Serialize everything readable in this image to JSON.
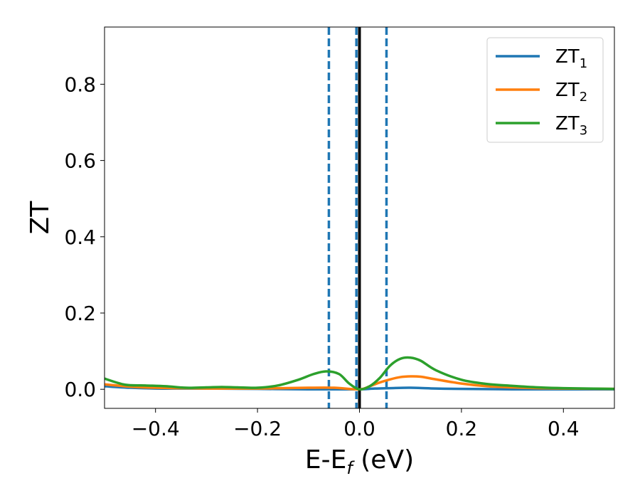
{
  "chart_data": {
    "type": "line",
    "title": "",
    "xlabel": {
      "main": "E-E",
      "sub": "f",
      "unit": " (eV)"
    },
    "ylabel": "ZT",
    "xlim": [
      -0.5,
      0.5
    ],
    "ylim": [
      -0.05,
      0.95
    ],
    "xticks": [
      -0.4,
      -0.2,
      0.0,
      0.2,
      0.4
    ],
    "xtick_labels": [
      "−0.4",
      "−0.2",
      "0.0",
      "0.2",
      "0.4"
    ],
    "yticks": [
      0.0,
      0.2,
      0.4,
      0.6,
      0.8
    ],
    "ytick_labels": [
      "0.0",
      "0.2",
      "0.4",
      "0.6",
      "0.8"
    ],
    "grid": false,
    "legend_position": "top-right",
    "vertical_lines": [
      {
        "x": 0.0,
        "style": "solid",
        "color": "#000000"
      },
      {
        "x": -0.06,
        "style": "dashed",
        "color": "#1f77b4"
      },
      {
        "x": -0.006,
        "style": "dashed",
        "color": "#1f77b4"
      },
      {
        "x": 0.053,
        "style": "dashed",
        "color": "#1f77b4"
      }
    ],
    "series": [
      {
        "name": "ZT",
        "sub": "1",
        "color": "#1f77b4",
        "x": [
          -0.5,
          -0.45,
          -0.4,
          -0.35,
          -0.3,
          -0.2,
          -0.1,
          -0.05,
          0.0,
          0.03,
          0.06,
          0.1,
          0.15,
          0.2,
          0.3,
          0.4,
          0.5
        ],
        "y": [
          0.008,
          0.004,
          0.002,
          0.002,
          0.002,
          0.001,
          0.0,
          0.0,
          0.0,
          0.002,
          0.003,
          0.004,
          0.002,
          0.001,
          0.0,
          0.0,
          0.0
        ]
      },
      {
        "name": "ZT",
        "sub": "2",
        "color": "#ff7f0e",
        "x": [
          -0.5,
          -0.45,
          -0.4,
          -0.35,
          -0.3,
          -0.25,
          -0.2,
          -0.15,
          -0.1,
          -0.05,
          0.0,
          0.02,
          0.04,
          0.06,
          0.08,
          0.1,
          0.12,
          0.15,
          0.2,
          0.25,
          0.3,
          0.35,
          0.4,
          0.5
        ],
        "y": [
          0.013,
          0.007,
          0.004,
          0.003,
          0.002,
          0.002,
          0.002,
          0.003,
          0.004,
          0.004,
          0.0,
          0.008,
          0.018,
          0.026,
          0.032,
          0.034,
          0.033,
          0.026,
          0.015,
          0.008,
          0.005,
          0.003,
          0.002,
          0.001
        ]
      },
      {
        "name": "ZT",
        "sub": "3",
        "color": "#2ca02c",
        "x": [
          -0.5,
          -0.46,
          -0.42,
          -0.38,
          -0.34,
          -0.3,
          -0.27,
          -0.24,
          -0.2,
          -0.16,
          -0.12,
          -0.09,
          -0.065,
          -0.04,
          -0.02,
          0.0,
          0.02,
          0.04,
          0.06,
          0.08,
          0.1,
          0.12,
          0.15,
          0.2,
          0.25,
          0.3,
          0.35,
          0.4,
          0.5
        ],
        "y": [
          0.028,
          0.012,
          0.01,
          0.008,
          0.004,
          0.005,
          0.006,
          0.005,
          0.004,
          0.01,
          0.025,
          0.04,
          0.047,
          0.04,
          0.015,
          0.0,
          0.008,
          0.03,
          0.062,
          0.08,
          0.083,
          0.075,
          0.05,
          0.025,
          0.014,
          0.009,
          0.005,
          0.003,
          0.001
        ]
      }
    ]
  }
}
